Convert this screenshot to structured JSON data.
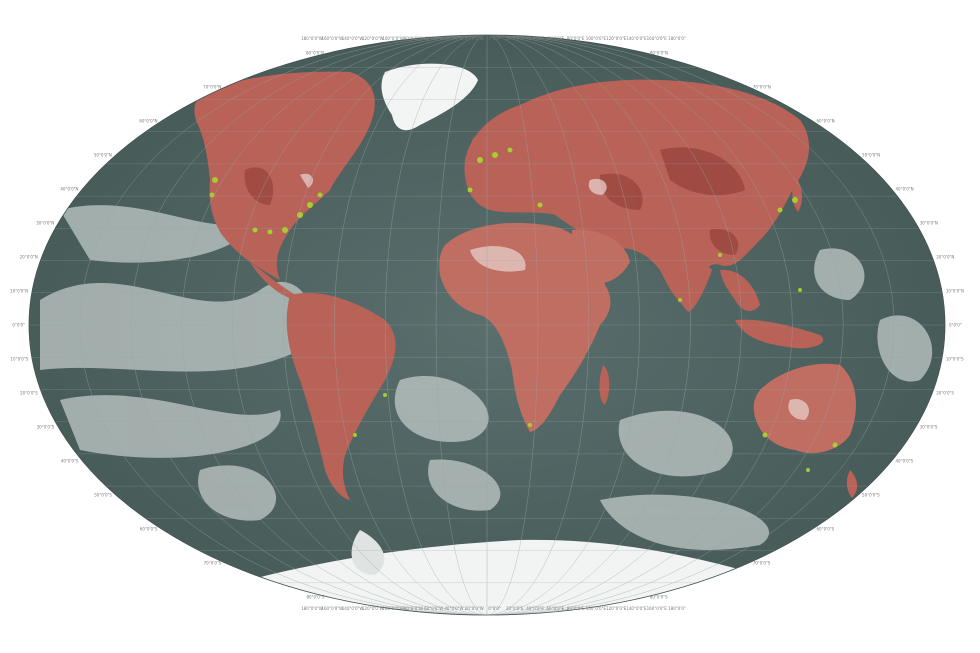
{
  "map": {
    "projection": "Winkel Tripel",
    "colors": {
      "ocean": "#4e6361",
      "ocean_light": "#bfc8c6",
      "land": "#b86258",
      "land_dark": "#8c3a33",
      "land_light": "#d9a39b",
      "ice": "#f4f6f6",
      "coast_highlight": "#a7d92b",
      "graticule": "#9aa5a4"
    },
    "top_longitudes": [
      "180°0'0\"W",
      "160°0'0\"W",
      "140°0'0\"W",
      "120°0'0\"W",
      "100°0'0\"W",
      "80°0'0\"W",
      "60°0'0\"W",
      "40°0'0\"W",
      "20°0'0\"W",
      "0°0'0\"",
      "20°0'0\"E",
      "40°0'0\"E",
      "60°0'0\"E",
      "80°0'0\"E",
      "100°0'0\"E",
      "120°0'0\"E",
      "140°0'0\"E",
      "160°0'0\"E",
      "180°0'0\""
    ],
    "bottom_longitudes": [
      "180°0'0\"W",
      "160°0'0\"W",
      "140°0'0\"W",
      "120°0'0\"W",
      "100°0'0\"W",
      "80°0'0\"W",
      "60°0'0\"W",
      "40°0'0\"W",
      "20°0'0\"W",
      "0°0'0\"",
      "20°0'0\"E",
      "40°0'0\"E",
      "60°0'0\"E",
      "80°0'0\"E",
      "100°0'0\"E",
      "120°0'0\"E",
      "140°0'0\"E",
      "160°0'0\"E",
      "180°0'0\""
    ],
    "left_latitudes": [
      "80°0'0\"N",
      "70°0'0\"N",
      "60°0'0\"N",
      "50°0'0\"N",
      "40°0'0\"N",
      "30°0'0\"N",
      "20°0'0\"N",
      "10°0'0\"N",
      "0°0'0\"",
      "10°0'0\"S",
      "20°0'0\"S",
      "30°0'0\"S",
      "40°0'0\"S",
      "50°0'0\"S",
      "60°0'0\"S",
      "70°0'0\"S",
      "80°0'0\"S"
    ],
    "right_latitudes": [
      "80°0'0\"N",
      "70°0'0\"N",
      "60°0'0\"N",
      "50°0'0\"N",
      "40°0'0\"N",
      "30°0'0\"N",
      "20°0'0\"N",
      "10°0'0\"N",
      "0°0'0\"",
      "10°0'0\"S",
      "20°0'0\"S",
      "30°0'0\"S",
      "40°0'0\"S",
      "50°0'0\"S",
      "60°0'0\"S",
      "70°0'0\"S",
      "80°0'0\"S"
    ]
  }
}
